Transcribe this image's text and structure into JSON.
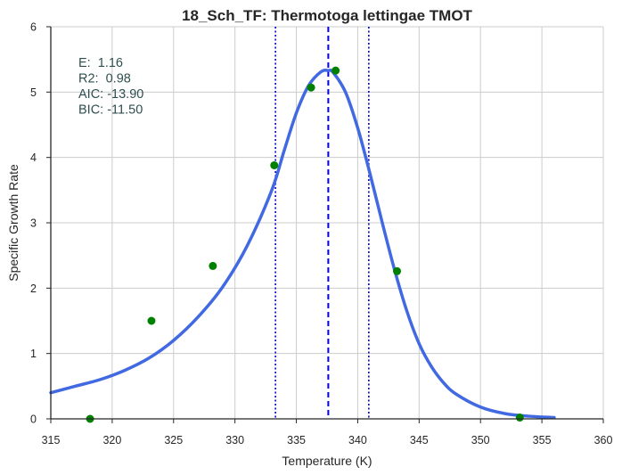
{
  "chart_data": {
    "type": "scatter",
    "title": "18_Sch_TF: Thermotoga lettingae TMOT",
    "xlabel": "Temperature (K)",
    "ylabel": "Specific Growth Rate",
    "xlim": [
      315,
      360
    ],
    "ylim": [
      0,
      6
    ],
    "x_ticks": [
      315,
      320,
      325,
      330,
      335,
      340,
      345,
      350,
      355,
      360
    ],
    "y_ticks": [
      0,
      1,
      2,
      3,
      4,
      5,
      6
    ],
    "grid": true,
    "points": {
      "color": "#008000",
      "x": [
        318.2,
        323.2,
        328.2,
        333.2,
        336.2,
        338.2,
        343.2,
        353.2
      ],
      "y": [
        0.0,
        1.5,
        2.34,
        3.88,
        5.07,
        5.33,
        2.26,
        0.02
      ]
    },
    "fit_curve": {
      "color": "#4169e1",
      "x": [
        315,
        317,
        319,
        321,
        323,
        325,
        327,
        329,
        331,
        333,
        334,
        335,
        336,
        337,
        337.6,
        338,
        339,
        340,
        341,
        342,
        343,
        344,
        345,
        346,
        347,
        348,
        350,
        352,
        354,
        356
      ],
      "y": [
        0.4,
        0.5,
        0.6,
        0.74,
        0.93,
        1.2,
        1.56,
        2.02,
        2.65,
        3.5,
        4.1,
        4.68,
        5.1,
        5.31,
        5.33,
        5.3,
        5.0,
        4.45,
        3.75,
        3.0,
        2.28,
        1.65,
        1.15,
        0.8,
        0.55,
        0.38,
        0.18,
        0.08,
        0.04,
        0.02
      ]
    },
    "vlines": [
      {
        "x": 333.3,
        "style": "dotted",
        "color": "#0000cd"
      },
      {
        "x": 337.6,
        "style": "dashed",
        "color": "#0000ff"
      },
      {
        "x": 340.9,
        "style": "dotted",
        "color": "#0000cd"
      }
    ],
    "annotations": [
      "E:  1.16",
      "R2:  0.98",
      "AIC: -13.90",
      "BIC: -11.50"
    ]
  }
}
